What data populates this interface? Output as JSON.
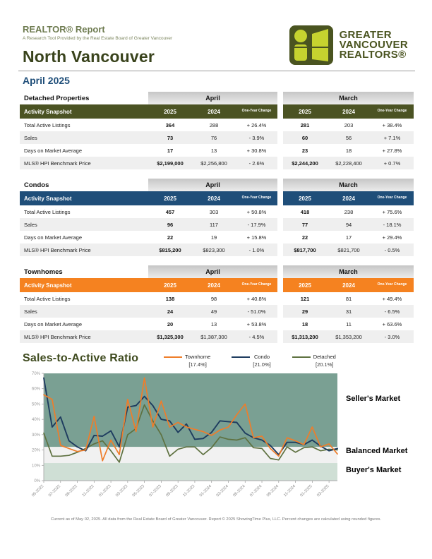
{
  "page": {
    "report_title": "REALTOR® Report",
    "report_subtitle": "A Research Tool Provided by the Real Estate Board of Greater Vancouver",
    "area_title": "North Vancouver",
    "period": "April 2025",
    "footer": "Current as of May 02, 2025. All data from the Real Estate Board of Greater Vancouver.  Report © 2025 ShowingTime Plus, LLC. Percent changes are calculated using rounded figures."
  },
  "logo": {
    "lines": [
      "GREATER",
      "VANCOUVER",
      "REALTORS®"
    ],
    "dark_color": "#4a5420",
    "lime_color": "#c6d32f"
  },
  "tables": [
    {
      "property_type": "Detached Properties",
      "accent_color": "#4b5323",
      "snapshot_label": "Activity Snapshot",
      "month_groups": [
        "April",
        "March"
      ],
      "col_headers": [
        "2025",
        "2024",
        "One-Year Change"
      ],
      "rows": [
        {
          "label": "Total Active Listings",
          "april": [
            "364",
            "288",
            "+ 26.4%"
          ],
          "march": [
            "281",
            "203",
            "+ 38.4%"
          ]
        },
        {
          "label": "Sales",
          "april": [
            "73",
            "76",
            "- 3.9%"
          ],
          "march": [
            "60",
            "56",
            "+ 7.1%"
          ]
        },
        {
          "label": "Days on Market Average",
          "april": [
            "17",
            "13",
            "+ 30.8%"
          ],
          "march": [
            "23",
            "18",
            "+ 27.8%"
          ]
        },
        {
          "label": "MLS® HPI Benchmark Price",
          "april": [
            "$2,199,000",
            "$2,256,800",
            "- 2.6%"
          ],
          "march": [
            "$2,244,200",
            "$2,228,400",
            "+ 0.7%"
          ]
        }
      ]
    },
    {
      "property_type": "Condos",
      "accent_color": "#1f4e79",
      "snapshot_label": "Activity Snapshot",
      "month_groups": [
        "April",
        "March"
      ],
      "col_headers": [
        "2025",
        "2024",
        "One-Year Change"
      ],
      "rows": [
        {
          "label": "Total Active Listings",
          "april": [
            "457",
            "303",
            "+ 50.8%"
          ],
          "march": [
            "418",
            "238",
            "+ 75.6%"
          ]
        },
        {
          "label": "Sales",
          "april": [
            "96",
            "117",
            "- 17.9%"
          ],
          "march": [
            "77",
            "94",
            "- 18.1%"
          ]
        },
        {
          "label": "Days on Market Average",
          "april": [
            "22",
            "19",
            "+ 15.8%"
          ],
          "march": [
            "22",
            "17",
            "+ 29.4%"
          ]
        },
        {
          "label": "MLS® HPI Benchmark Price",
          "april": [
            "$815,200",
            "$823,300",
            "- 1.0%"
          ],
          "march": [
            "$817,700",
            "$821,700",
            "- 0.5%"
          ]
        }
      ]
    },
    {
      "property_type": "Townhomes",
      "accent_color": "#f58220",
      "snapshot_label": "Activity Snapshot",
      "month_groups": [
        "April",
        "March"
      ],
      "col_headers": [
        "2025",
        "2024",
        "One-Year Change"
      ],
      "rows": [
        {
          "label": "Total Active Listings",
          "april": [
            "138",
            "98",
            "+ 40.8%"
          ],
          "march": [
            "121",
            "81",
            "+ 49.4%"
          ]
        },
        {
          "label": "Sales",
          "april": [
            "24",
            "49",
            "- 51.0%"
          ],
          "march": [
            "29",
            "31",
            "- 6.5%"
          ]
        },
        {
          "label": "Days on Market Average",
          "april": [
            "20",
            "13",
            "+ 53.8%"
          ],
          "march": [
            "18",
            "11",
            "+ 63.6%"
          ]
        },
        {
          "label": "MLS® HPI Benchmark Price",
          "april": [
            "$1,325,300",
            "$1,387,300",
            "- 4.5%"
          ],
          "march": [
            "$1,313,200",
            "$1,353,200",
            "- 3.0%"
          ]
        }
      ]
    }
  ],
  "chart": {
    "title": "Sales-to-Active Ratio",
    "legend": [
      {
        "name": "Townhome",
        "current": "[17.4%]"
      },
      {
        "name": "Condo",
        "current": "[21.0%]"
      },
      {
        "name": "Detached",
        "current": "[20.1%]"
      }
    ],
    "zone_labels": [
      "Seller's Market",
      "Balanced Market",
      "Buyer's Market"
    ]
  },
  "chart_data": {
    "type": "line",
    "title": "Sales-to-Active Ratio",
    "ylim": [
      0,
      70
    ],
    "yticks": [
      0,
      10,
      20,
      30,
      40,
      50,
      60,
      70
    ],
    "x": [
      "05-2022",
      "06-2022",
      "07-2022",
      "08-2022",
      "09-2022",
      "10-2022",
      "11-2022",
      "12-2022",
      "01-2023",
      "02-2023",
      "03-2023",
      "04-2023",
      "05-2023",
      "06-2023",
      "07-2023",
      "08-2023",
      "09-2023",
      "10-2023",
      "11-2023",
      "12-2023",
      "01-2024",
      "02-2024",
      "03-2024",
      "04-2024",
      "05-2024",
      "06-2024",
      "07-2024",
      "08-2024",
      "09-2024",
      "10-2024",
      "11-2024",
      "12-2024",
      "01-2025",
      "02-2025",
      "03-2025",
      "04-2025"
    ],
    "x_labels_shown_every": 2,
    "bands": [
      {
        "label": "Seller's Market",
        "from": 22,
        "to": 70,
        "color": "#7aa093"
      },
      {
        "label": "Balanced Market",
        "from": 11.5,
        "to": 22,
        "color": "#f1f1f1"
      },
      {
        "label": "Buyer's Market",
        "from": 0,
        "to": 11.5,
        "color": "#cfdfd5"
      }
    ],
    "series": [
      {
        "name": "Detached",
        "color": "#5e7140",
        "width": 1.7,
        "values": [
          31,
          16,
          16,
          16.5,
          18.5,
          21,
          24,
          26,
          19.5,
          12,
          30,
          34,
          49.5,
          39,
          30,
          16,
          20.5,
          22,
          22,
          17,
          21.5,
          28.5,
          27,
          26.5,
          28,
          21.5,
          21,
          14.5,
          13.5,
          22,
          18.5,
          21.5,
          22,
          19.5,
          20.5,
          20.1
        ]
      },
      {
        "name": "Condo",
        "color": "#1e3c5f",
        "width": 1.9,
        "values": [
          67,
          35,
          41.5,
          26,
          22,
          19.5,
          29.5,
          29,
          32.5,
          22,
          48,
          49,
          55,
          49,
          40,
          39,
          31.5,
          37,
          27,
          27.5,
          31.5,
          39,
          38.5,
          38,
          31,
          28,
          26.5,
          23,
          17,
          25,
          25,
          23.5,
          26.5,
          22.5,
          19.5,
          21
        ]
      },
      {
        "name": "Townhome",
        "color": "#ef7d2a",
        "width": 1.7,
        "values": [
          56,
          53,
          23,
          21,
          19,
          20,
          42,
          13,
          26.5,
          17,
          53,
          32,
          67,
          35,
          52,
          35,
          38,
          35,
          33.5,
          32,
          29.5,
          33,
          35,
          43,
          50,
          28,
          29,
          21,
          16,
          28,
          26,
          23.5,
          35,
          22,
          24,
          17.4
        ]
      }
    ],
    "legend_position": "top"
  }
}
